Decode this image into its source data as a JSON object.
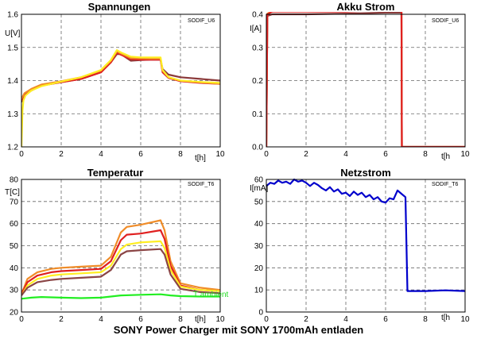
{
  "caption": "SONY Power Charger mit SONY 1700mAh entladen",
  "chart_data": [
    {
      "type": "line",
      "title": "Spannungen",
      "xlabel": "t[h]",
      "ylabel": "U[V]",
      "tag": "SODIF_U6",
      "xlim": [
        0,
        10
      ],
      "ylim": [
        1.2,
        1.6
      ],
      "xticks": [
        0,
        2,
        4,
        6,
        8,
        10
      ],
      "yticks": [
        1.2,
        1.3,
        1.4,
        1.5,
        1.6
      ],
      "grid": true,
      "series": [
        {
          "color": "#8b3a3a",
          "x": [
            0,
            0.15,
            0.5,
            1,
            2,
            3,
            4,
            4.5,
            4.8,
            5.0,
            5.5,
            6,
            6.5,
            7.0,
            7.1,
            7.4,
            8,
            9,
            10
          ],
          "y": [
            1.335,
            1.355,
            1.37,
            1.385,
            1.395,
            1.405,
            1.425,
            1.455,
            1.48,
            1.48,
            1.46,
            1.462,
            1.463,
            1.463,
            1.435,
            1.418,
            1.41,
            1.405,
            1.4
          ]
        },
        {
          "color": "#e02020",
          "x": [
            0,
            0.15,
            0.5,
            1,
            2,
            3,
            4,
            4.5,
            4.8,
            5.0,
            5.5,
            6,
            6.5,
            7.0,
            7.1,
            7.4,
            8,
            9,
            10
          ],
          "y": [
            1.34,
            1.36,
            1.372,
            1.385,
            1.395,
            1.405,
            1.425,
            1.455,
            1.485,
            1.478,
            1.465,
            1.463,
            1.463,
            1.463,
            1.425,
            1.408,
            1.398,
            1.393,
            1.39
          ]
        },
        {
          "color": "#f08c28",
          "x": [
            0,
            0.15,
            0.5,
            1,
            2,
            3,
            4,
            4.5,
            4.8,
            5.0,
            5.5,
            6,
            6.5,
            7.0,
            7.1,
            7.4,
            8,
            9,
            10
          ],
          "y": [
            1.345,
            1.362,
            1.375,
            1.388,
            1.398,
            1.41,
            1.43,
            1.46,
            1.488,
            1.482,
            1.468,
            1.467,
            1.466,
            1.466,
            1.43,
            1.41,
            1.4,
            1.395,
            1.39
          ]
        },
        {
          "color": "#ffee22",
          "x": [
            0,
            0.05,
            0.1,
            0.2,
            0.5,
            1,
            2,
            3,
            4,
            4.5,
            4.8,
            5.0,
            5.5,
            6,
            6.5,
            7.0,
            7.1,
            7.4,
            8,
            9,
            10
          ],
          "y": [
            1.2,
            1.31,
            1.34,
            1.355,
            1.37,
            1.383,
            1.397,
            1.41,
            1.432,
            1.462,
            1.492,
            1.485,
            1.472,
            1.47,
            1.47,
            1.47,
            1.432,
            1.41,
            1.4,
            1.396,
            1.393
          ]
        }
      ]
    },
    {
      "type": "line",
      "title": "Akku Strom",
      "xlabel": "t[h",
      "ylabel": "I[A]",
      "tag": "SODIF_U6",
      "xlim": [
        0,
        10
      ],
      "ylim": [
        0,
        0.4
      ],
      "xticks": [
        0,
        2,
        4,
        6,
        8,
        10
      ],
      "yticks": [
        0,
        0.1,
        0.2,
        0.3,
        0.4
      ],
      "grid": true,
      "series": [
        {
          "color": "#8b3a3a",
          "x": [
            0,
            0.05,
            0.3,
            2,
            4,
            6,
            6.8,
            6.82,
            10
          ],
          "y": [
            0,
            0.395,
            0.4,
            0.4,
            0.402,
            0.405,
            0.405,
            0,
            0
          ]
        },
        {
          "color": "#f08c28",
          "x": [
            0,
            0.05,
            0.3,
            2,
            4,
            5.5,
            6.8,
            6.82,
            10
          ],
          "y": [
            0,
            0.402,
            0.41,
            0.41,
            0.41,
            0.415,
            0.415,
            0,
            0
          ]
        },
        {
          "color": "#e02020",
          "x": [
            0,
            0.05,
            0.3,
            2,
            4,
            5.5,
            6.8,
            6.82,
            10
          ],
          "y": [
            0,
            0.4,
            0.408,
            0.408,
            0.408,
            0.412,
            0.412,
            0,
            0
          ]
        }
      ]
    },
    {
      "type": "line",
      "title": "Temperatur",
      "xlabel": "t[h]",
      "ylabel": "T[C]",
      "tag": "SODIF_T6",
      "annotation": "T ambient",
      "xlim": [
        0,
        10
      ],
      "ylim": [
        20,
        80
      ],
      "xticks": [
        0,
        2,
        4,
        6,
        8,
        10
      ],
      "yticks": [
        20,
        30,
        40,
        50,
        60,
        70,
        80
      ],
      "grid": true,
      "series": [
        {
          "color": "#f08c28",
          "x": [
            0,
            0.3,
            0.8,
            1.5,
            2,
            3,
            4,
            4.5,
            5,
            5.3,
            6,
            7,
            7.2,
            7.5,
            8,
            9,
            10
          ],
          "y": [
            28,
            35,
            38,
            39.5,
            40,
            40.5,
            41,
            45,
            56,
            58.5,
            59.5,
            61.5,
            57,
            43,
            33,
            31,
            30
          ]
        },
        {
          "color": "#e02020",
          "x": [
            0,
            0.3,
            0.8,
            1.5,
            2,
            3,
            4,
            4.5,
            5,
            5.3,
            6,
            7,
            7.2,
            7.5,
            8,
            9,
            10
          ],
          "y": [
            28,
            33.5,
            36.5,
            38,
            38.5,
            39,
            39.5,
            43,
            52.5,
            55,
            55.5,
            57,
            53,
            41,
            32,
            30,
            29.5
          ]
        },
        {
          "color": "#ffee22",
          "x": [
            0,
            0.3,
            0.8,
            1.5,
            2,
            3,
            4,
            4.5,
            5,
            5.3,
            6,
            7,
            7.2,
            7.5,
            8,
            9,
            10
          ],
          "y": [
            27.5,
            32,
            35,
            36.5,
            37,
            37.5,
            38,
            41,
            48.5,
            50.5,
            51.5,
            52,
            49,
            39,
            31.5,
            30,
            29.5
          ]
        },
        {
          "color": "#8b4545",
          "x": [
            0,
            0.3,
            0.8,
            1.5,
            2,
            3,
            4,
            4.5,
            5,
            5.3,
            6,
            7,
            7.2,
            7.5,
            8,
            9,
            10
          ],
          "y": [
            27.5,
            31,
            33.5,
            34.5,
            35,
            35.5,
            36,
            39,
            46,
            47.5,
            48,
            48.5,
            46,
            37,
            30.5,
            29,
            28.5
          ]
        },
        {
          "color": "#22ee22",
          "x": [
            0,
            0.5,
            1,
            2,
            3,
            4,
            4.5,
            5,
            6,
            7,
            7.5,
            8,
            9,
            10
          ],
          "y": [
            26,
            26.5,
            26.8,
            26.5,
            26.3,
            26.5,
            27,
            27.5,
            27.8,
            28,
            27.5,
            27.2,
            27,
            27
          ]
        }
      ]
    },
    {
      "type": "line",
      "title": "Netzstrom",
      "xlabel": "t[h",
      "ylabel": "I[mA]",
      "tag": "SODIF_T6",
      "xlim": [
        0,
        10
      ],
      "ylim": [
        0,
        60
      ],
      "xticks": [
        0,
        2,
        4,
        6,
        8,
        10
      ],
      "yticks": [
        0,
        10,
        20,
        30,
        40,
        50,
        60
      ],
      "grid": true,
      "series": [
        {
          "color": "#0000cc",
          "x": [
            0,
            0.2,
            0.4,
            0.6,
            0.8,
            1.0,
            1.2,
            1.4,
            1.6,
            1.8,
            2.0,
            2.2,
            2.4,
            2.6,
            2.8,
            3.0,
            3.2,
            3.4,
            3.6,
            3.8,
            4.0,
            4.2,
            4.4,
            4.6,
            4.8,
            5.0,
            5.2,
            5.4,
            5.6,
            5.8,
            6.0,
            6.2,
            6.4,
            6.6,
            6.8,
            7.0,
            7.05,
            7.1,
            8,
            9,
            10
          ],
          "y": [
            57,
            58.5,
            58,
            59.5,
            58.5,
            59,
            58,
            60,
            59,
            59.5,
            58.5,
            57,
            58.5,
            57.5,
            56,
            55,
            56.5,
            54.5,
            55.5,
            53.5,
            54,
            52.5,
            54.5,
            53,
            54,
            52,
            53,
            51,
            52,
            50,
            49.5,
            51.5,
            51,
            55,
            53.5,
            52,
            30,
            9.5,
            9.5,
            9.8,
            9.5
          ]
        }
      ]
    }
  ]
}
